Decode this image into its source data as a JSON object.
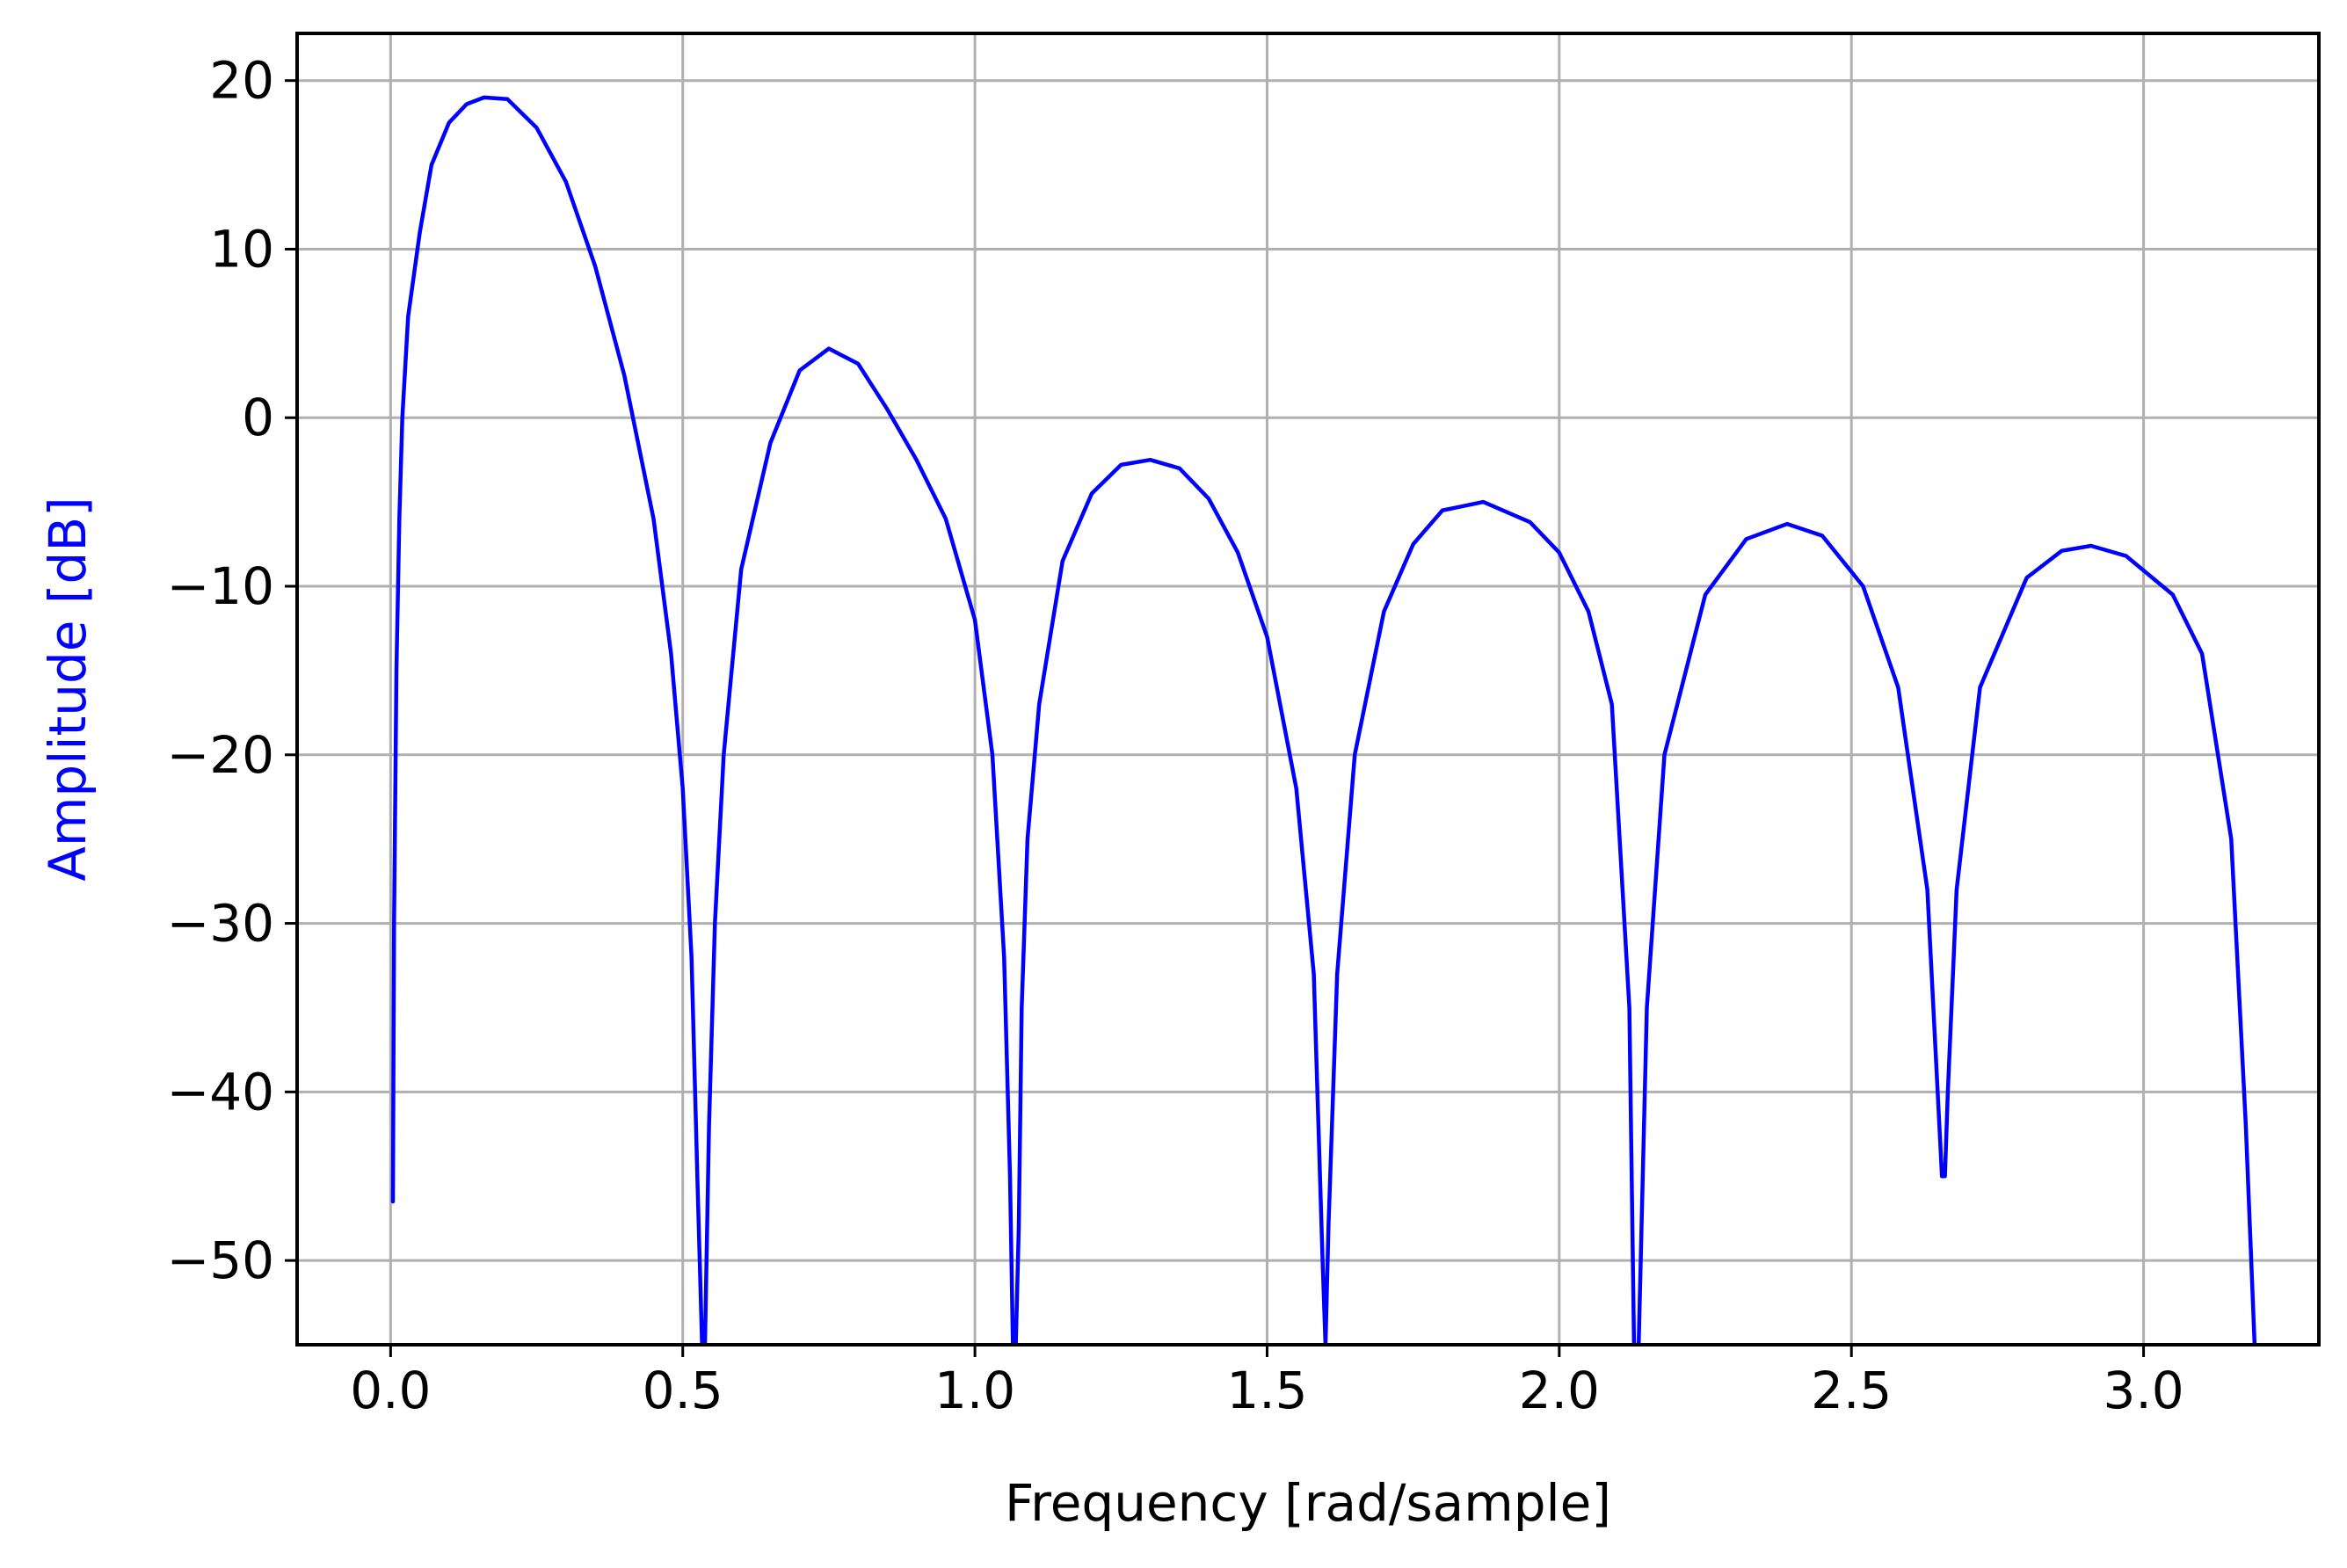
{
  "chart_data": {
    "type": "line",
    "title": "",
    "xlabel": "Frequency [rad/sample]",
    "ylabel": "Amplitude [dB]",
    "xlim": [
      -0.16,
      3.3
    ],
    "ylim": [
      -55,
      22.8
    ],
    "grid": true,
    "legend": "none",
    "colors": {
      "line": "#0000ff",
      "ylabel": "#0000ff",
      "grid": "#b0b0b0",
      "axes": "#000000"
    },
    "x_ticks": [
      0.0,
      0.5,
      1.0,
      1.5,
      2.0,
      2.5,
      3.0
    ],
    "x_tick_labels": [
      "0.0",
      "0.5",
      "1.0",
      "1.5",
      "2.0",
      "2.5",
      "3.0"
    ],
    "y_ticks": [
      20,
      10,
      0,
      -10,
      -20,
      -30,
      -40,
      -50
    ],
    "y_tick_labels": [
      "20",
      "10",
      "0",
      "−10",
      "−20",
      "−30",
      "−40",
      "−50"
    ],
    "series": [
      {
        "name": "",
        "x": [
          0.004,
          0.006,
          0.01,
          0.015,
          0.02,
          0.03,
          0.05,
          0.07,
          0.1,
          0.13,
          0.16,
          0.2,
          0.25,
          0.3,
          0.35,
          0.4,
          0.45,
          0.48,
          0.5,
          0.515,
          0.525,
          0.533,
          0.538,
          0.545,
          0.555,
          0.57,
          0.6,
          0.65,
          0.7,
          0.75,
          0.8,
          0.85,
          0.9,
          0.95,
          1.0,
          1.03,
          1.05,
          1.06,
          1.065,
          1.07,
          1.075,
          1.08,
          1.09,
          1.11,
          1.15,
          1.2,
          1.25,
          1.3,
          1.35,
          1.4,
          1.45,
          1.5,
          1.55,
          1.58,
          1.595,
          1.6,
          1.605,
          1.62,
          1.65,
          1.7,
          1.75,
          1.8,
          1.87,
          1.95,
          2.0,
          2.05,
          2.09,
          2.12,
          2.128,
          2.136,
          2.15,
          2.18,
          2.25,
          2.32,
          2.39,
          2.45,
          2.52,
          2.58,
          2.63,
          2.655,
          2.66,
          2.665,
          2.68,
          2.72,
          2.8,
          2.86,
          2.91,
          2.97,
          3.05,
          3.1,
          3.15,
          3.175,
          3.19
        ],
        "y": [
          -46.5,
          -30,
          -15,
          -6,
          0,
          6,
          11,
          15,
          17.5,
          18.6,
          19,
          18.9,
          17.2,
          14,
          9,
          2.5,
          -6,
          -14,
          -22,
          -32,
          -45,
          -55,
          -55,
          -42,
          -30,
          -20,
          -9,
          -1.5,
          2.8,
          4.1,
          3.2,
          0.5,
          -2.5,
          -6,
          -12,
          -20,
          -32,
          -45,
          -55,
          -55,
          -48,
          -35,
          -25,
          -17,
          -8.5,
          -4.5,
          -2.8,
          -2.5,
          -3,
          -4.8,
          -8,
          -13,
          -22,
          -33,
          -50,
          -55,
          -48,
          -33,
          -20,
          -11.5,
          -7.5,
          -5.5,
          -5,
          -6.2,
          -8,
          -11.5,
          -17,
          -35,
          -55,
          -55,
          -35,
          -20,
          -10.5,
          -7.2,
          -6.3,
          -7,
          -10,
          -16,
          -28,
          -45,
          -45,
          -40,
          -28,
          -16,
          -9.5,
          -7.9,
          -7.6,
          -8.2,
          -10.5,
          -14,
          -25,
          -42,
          -55
        ]
      }
    ]
  }
}
